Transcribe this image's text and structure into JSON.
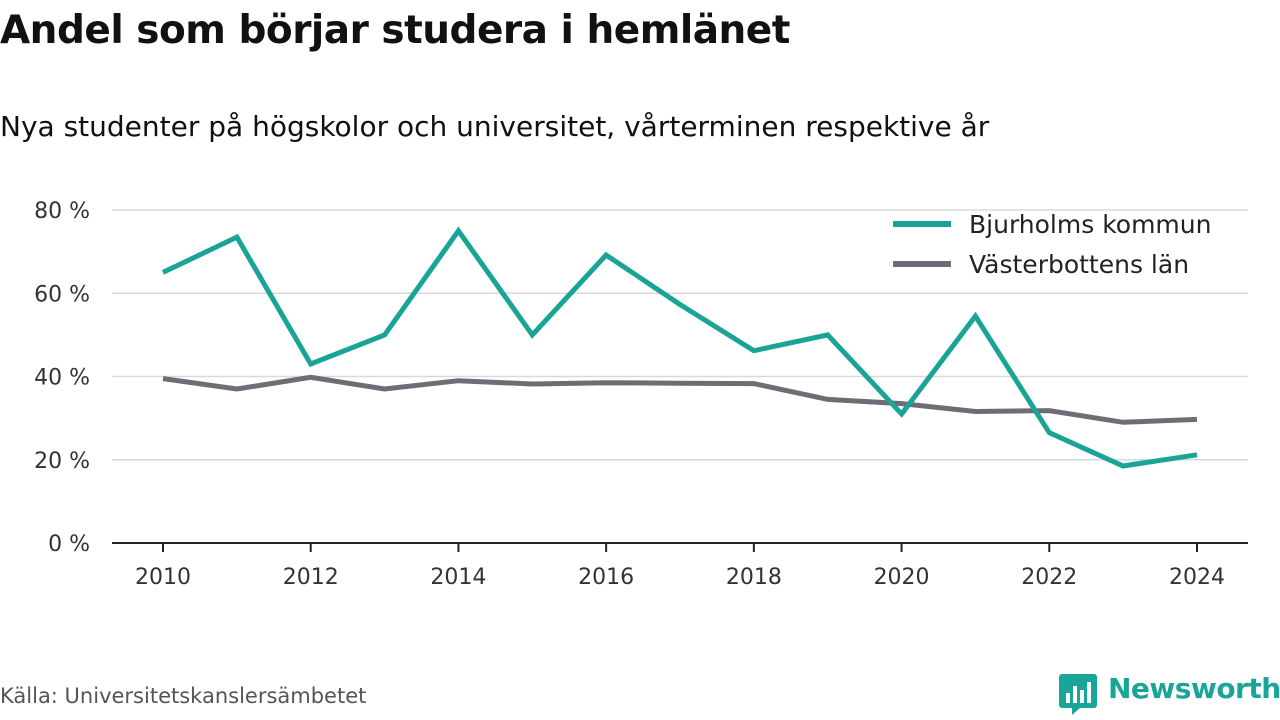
{
  "header": {
    "title": "Andel som börjar studera i hemlänet",
    "subtitle": "Nya studenter på högskolor och universitet, vårterminen respektive år"
  },
  "chart_data": {
    "type": "line",
    "title": "Andel som börjar studera i hemlänet",
    "subtitle": "Nya studenter på högskolor och universitet, vårterminen respektive år",
    "xlabel": "",
    "ylabel": "",
    "x": [
      2010,
      2011,
      2012,
      2013,
      2014,
      2015,
      2016,
      2017,
      2018,
      2019,
      2020,
      2021,
      2022,
      2023,
      2024
    ],
    "x_ticks": [
      "2010",
      "2012",
      "2014",
      "2016",
      "2018",
      "2020",
      "2022",
      "2024"
    ],
    "x_tick_values": [
      2010,
      2012,
      2014,
      2016,
      2018,
      2020,
      2022,
      2024
    ],
    "y_ticks": [
      "0 %",
      "20 %",
      "40 %",
      "60 %",
      "80 %"
    ],
    "y_tick_values": [
      0,
      20,
      40,
      60,
      80
    ],
    "ylim": [
      0,
      80
    ],
    "xlim": [
      2009.3,
      2024.7
    ],
    "grid": true,
    "legend_position": "top-right",
    "series": [
      {
        "name": "Bjurholms kommun",
        "color": "#1aa397",
        "values": [
          65,
          73.5,
          43,
          50,
          75,
          50,
          69.2,
          57.3,
          46.2,
          50,
          31,
          54.5,
          26.5,
          18.5,
          21.2
        ]
      },
      {
        "name": "Västerbottens län",
        "color": "#6e6d75",
        "values": [
          39.5,
          37,
          39.8,
          37,
          39,
          38.2,
          38.5,
          38.4,
          38.3,
          34.5,
          33.5,
          31.6,
          31.8,
          29,
          29.7
        ]
      }
    ]
  },
  "footer": {
    "source": "Källa: Universitetskanslersämbetet",
    "brand": "Newsworthy",
    "brand_color": "#19a597"
  }
}
